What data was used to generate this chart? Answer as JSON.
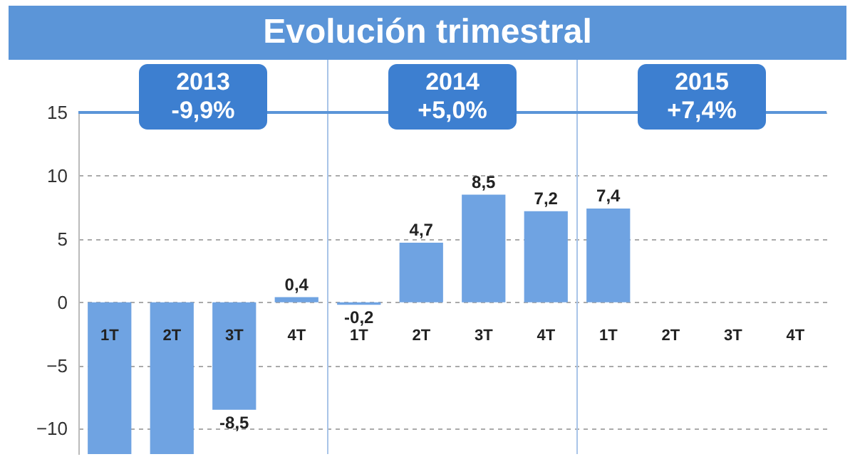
{
  "chart_data": {
    "type": "bar",
    "title": "Evolución trimestral",
    "categories": [
      "1T",
      "2T",
      "3T",
      "4T",
      "1T",
      "2T",
      "3T",
      "4T",
      "1T",
      "2T",
      "3T",
      "4T"
    ],
    "values": [
      -12,
      -12,
      -8.5,
      0.4,
      -0.2,
      4.7,
      8.5,
      7.2,
      7.4,
      null,
      null,
      null
    ],
    "value_labels": [
      null,
      null,
      "-8,5",
      "0,4",
      "-0,2",
      "4,7",
      "8,5",
      "7,2",
      "7,4",
      null,
      null,
      null
    ],
    "color": "#6fa3e2",
    "ylim": [
      -12,
      15
    ],
    "yticks": [
      -10,
      -5,
      0,
      5,
      10,
      15
    ],
    "grid": "y",
    "annotations": [
      "2013\n-9,9%",
      "2014\n+5,0%",
      "2015\n+7,4%"
    ]
  }
}
